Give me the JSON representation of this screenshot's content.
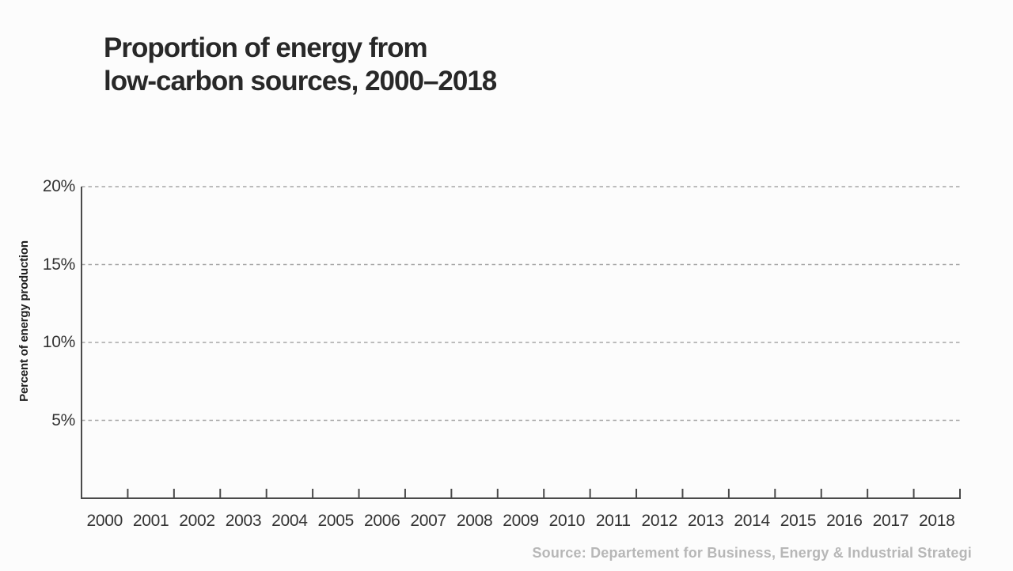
{
  "header": {
    "title_lines": [
      "Proportion of energy from",
      "low-carbon sources, 2000–2018"
    ]
  },
  "footer": {
    "source": "Source: Departement for Business, Energy & Industrial Strategi"
  },
  "colors": {
    "background": "#fcfcfc",
    "title": "#282828",
    "axis_line": "#4a4a4a",
    "tick_mark": "#4a4a4a",
    "gridline": "#a6a6a6",
    "tick_label": "#333333",
    "y_axis_title": "#1f1f1f",
    "source_text": "#b7b7b7"
  },
  "chart_data": {
    "type": "line",
    "title": "Proportion of energy from low-carbon sources, 2000–2018",
    "xlabel": "",
    "ylabel": "Percent of energy production",
    "categories": [
      "2000",
      "2001",
      "2002",
      "2003",
      "2004",
      "2005",
      "2006",
      "2007",
      "2008",
      "2009",
      "2010",
      "2011",
      "2012",
      "2013",
      "2014",
      "2015",
      "2016",
      "2017",
      "2018"
    ],
    "series": [],
    "ylim": [
      0,
      20
    ],
    "yticks": [
      5,
      10,
      15,
      20
    ],
    "ytick_suffix": "%",
    "grid": "horizontal-dashed",
    "legend": "none",
    "source": "Source: Departement for Business, Energy & Industrial Strategi"
  }
}
